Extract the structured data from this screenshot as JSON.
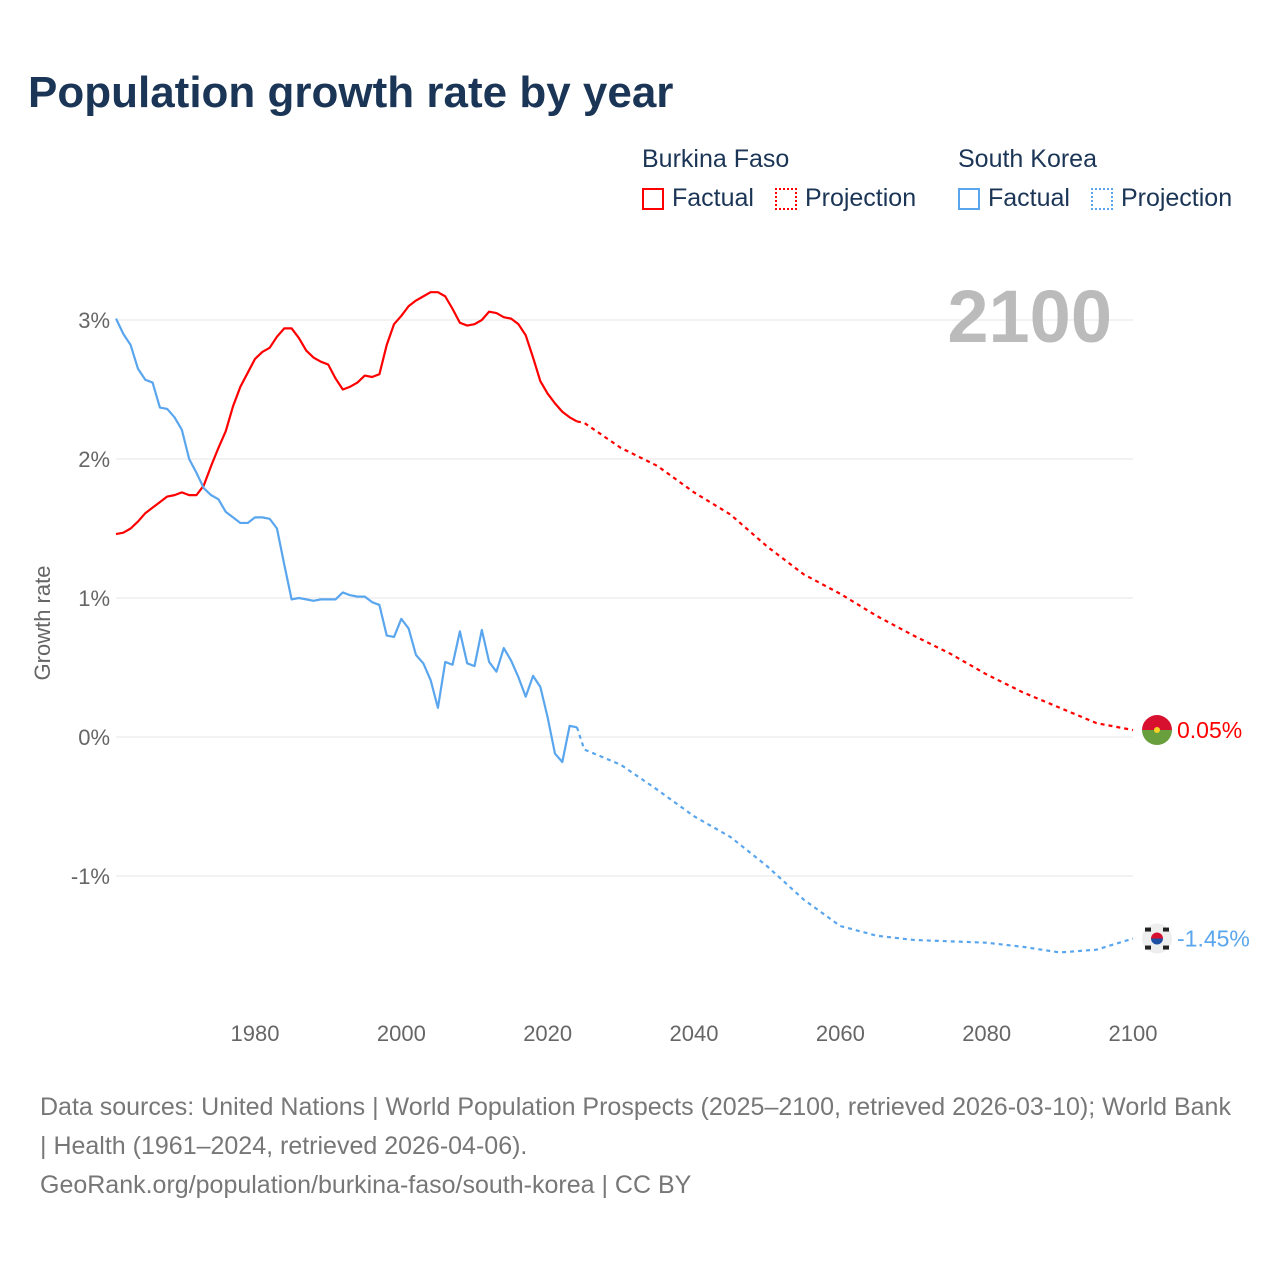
{
  "title": "Population growth rate by year",
  "legend": [
    {
      "country": "Burkina Faso",
      "factual": "Factual",
      "projection": "Projection",
      "color": "#ff0000"
    },
    {
      "country": "South Korea",
      "factual": "Factual",
      "projection": "Projection",
      "color": "#5aa6ee"
    }
  ],
  "current_year": "2100",
  "footer": {
    "sources": "Data sources: United Nations | World Population Prospects (2025–2100, retrieved 2026-03-10); World Bank | Health (1961–2024, retrieved 2026-04-06).",
    "link": "GeoRank.org/population/burkina-faso/south-korea | CC BY"
  },
  "chart_data": {
    "type": "line",
    "title": "Population growth rate by year",
    "ylabel": "Growth rate",
    "xlabel": "",
    "xlim": [
      1961,
      2100
    ],
    "ylim": [
      -2,
      3.3
    ],
    "xticks": [
      1980,
      2000,
      2020,
      2040,
      2060,
      2080,
      2100
    ],
    "yticks": [
      {
        "v": 3,
        "label": "3%"
      },
      {
        "v": 2,
        "label": "2%"
      },
      {
        "v": 1,
        "label": "1%"
      },
      {
        "v": 0,
        "label": "0%"
      },
      {
        "v": -1,
        "label": "-1%"
      }
    ],
    "series": [
      {
        "name": "Burkina Faso",
        "color": "#ff0000",
        "end_label": "0.05%",
        "factual": {
          "start": 1961,
          "values": [
            1.46,
            1.47,
            1.5,
            1.55,
            1.61,
            1.65,
            1.69,
            1.73,
            1.74,
            1.76,
            1.74,
            1.74,
            1.81,
            1.95,
            2.08,
            2.2,
            2.38,
            2.52,
            2.62,
            2.72,
            2.77,
            2.8,
            2.88,
            2.94,
            2.94,
            2.87,
            2.78,
            2.73,
            2.7,
            2.68,
            2.58,
            2.5,
            2.52,
            2.55,
            2.6,
            2.59,
            2.61,
            2.82,
            2.97,
            3.03,
            3.1,
            3.14,
            3.17,
            3.2,
            3.2,
            3.17,
            3.08,
            2.98,
            2.96,
            2.97,
            3.0,
            3.06,
            3.05,
            3.02,
            3.01,
            2.97,
            2.89,
            2.73,
            2.56,
            2.47,
            2.4,
            2.34,
            2.3,
            2.27
          ]
        },
        "projection": {
          "x": [
            2024,
            2025,
            2030,
            2035,
            2040,
            2045,
            2050,
            2055,
            2060,
            2065,
            2070,
            2075,
            2080,
            2085,
            2090,
            2095,
            2100
          ],
          "values": [
            2.27,
            2.26,
            2.08,
            1.95,
            1.76,
            1.6,
            1.37,
            1.17,
            1.03,
            0.87,
            0.73,
            0.6,
            0.45,
            0.32,
            0.21,
            0.1,
            0.05
          ]
        }
      },
      {
        "name": "South Korea",
        "color": "#5aa6ee",
        "end_label": "-1.45%",
        "factual": {
          "start": 1961,
          "values": [
            3.01,
            2.9,
            2.82,
            2.65,
            2.57,
            2.55,
            2.37,
            2.36,
            2.3,
            2.21,
            2.0,
            1.9,
            1.79,
            1.74,
            1.71,
            1.62,
            1.58,
            1.54,
            1.54,
            1.58,
            1.58,
            1.57,
            1.5,
            1.24,
            0.99,
            1.0,
            0.99,
            0.98,
            0.99,
            0.99,
            0.99,
            1.04,
            1.02,
            1.01,
            1.01,
            0.97,
            0.95,
            0.73,
            0.72,
            0.85,
            0.78,
            0.59,
            0.53,
            0.41,
            0.21,
            0.54,
            0.52,
            0.76,
            0.53,
            0.51,
            0.77,
            0.54,
            0.47,
            0.64,
            0.55,
            0.43,
            0.29,
            0.44,
            0.36,
            0.14,
            -0.12,
            -0.18,
            0.08,
            0.07
          ]
        },
        "projection": {
          "x": [
            2024,
            2025,
            2030,
            2035,
            2040,
            2045,
            2050,
            2055,
            2060,
            2065,
            2070,
            2075,
            2080,
            2085,
            2090,
            2095,
            2100
          ],
          "values": [
            0.07,
            -0.09,
            -0.2,
            -0.38,
            -0.57,
            -0.72,
            -0.93,
            -1.17,
            -1.36,
            -1.43,
            -1.46,
            -1.47,
            -1.48,
            -1.51,
            -1.55,
            -1.53,
            -1.45
          ]
        }
      }
    ]
  }
}
